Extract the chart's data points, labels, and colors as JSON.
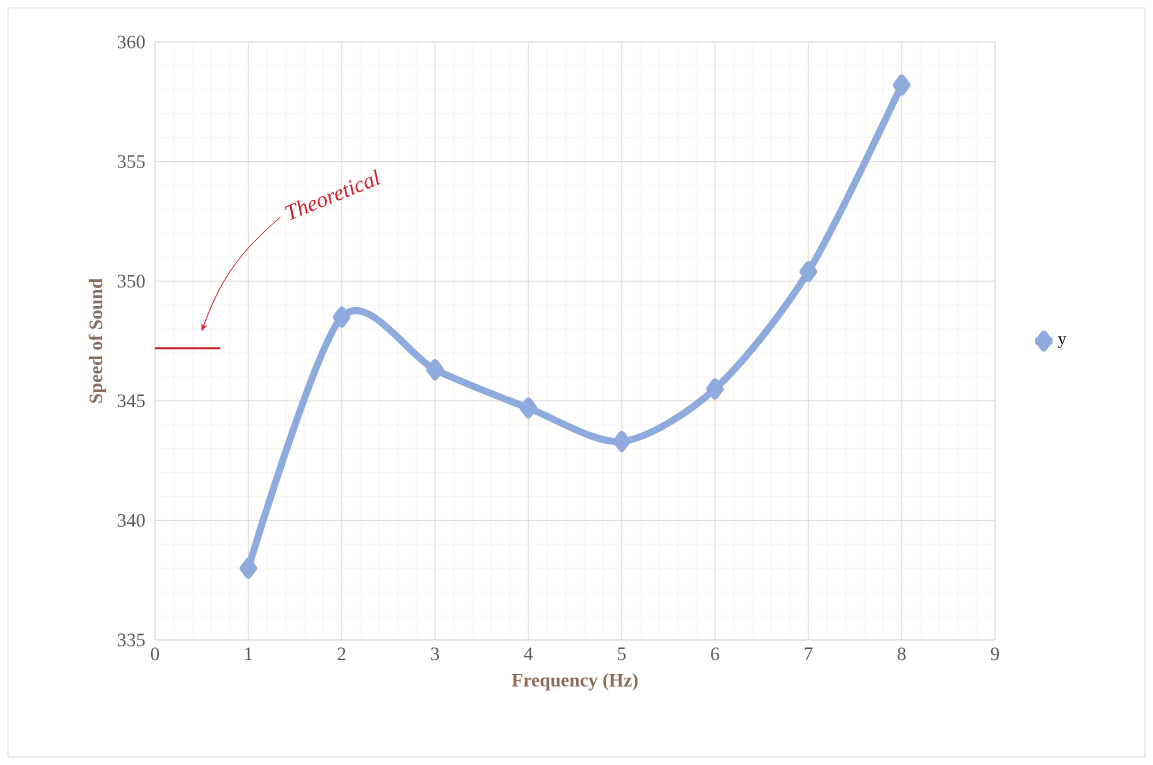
{
  "chart_data": {
    "type": "line",
    "xlabel": "Frequency (Hz)",
    "ylabel": "Speed of Sound",
    "x": [
      1,
      2,
      3,
      4,
      5,
      6,
      7,
      8
    ],
    "series": [
      {
        "name": "y",
        "color": "#8faadc",
        "values": [
          338.0,
          348.5,
          346.3,
          344.7,
          343.3,
          345.5,
          350.4,
          358.2
        ],
        "marker": "diamond"
      },
      {
        "x": [
          0,
          0.7
        ],
        "values": [
          347.2,
          347.2
        ],
        "color": "#cc1f2a",
        "marker": "none"
      }
    ],
    "annotations": [
      "Theoretical"
    ],
    "xlim": [
      0,
      9
    ],
    "xticks": [
      0,
      1,
      2,
      3,
      4,
      5,
      6,
      7,
      8,
      9
    ],
    "ylim": [
      335,
      360
    ],
    "yticks": [
      335,
      340,
      345,
      350,
      355,
      360
    ],
    "grid": true,
    "legend": "right",
    "line_style": "solid"
  }
}
